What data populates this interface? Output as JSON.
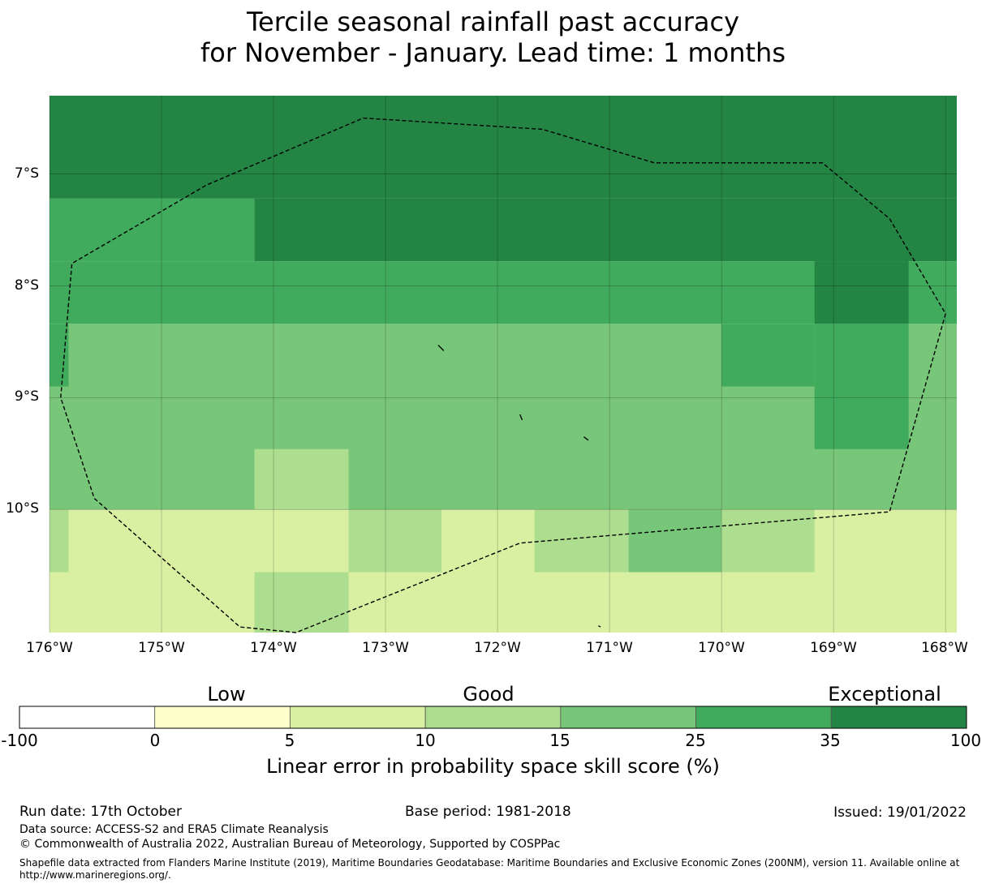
{
  "title": {
    "line1": "Tercile seasonal rainfall past accuracy",
    "line2": "for November - January. Lead time: 1 months"
  },
  "map": {
    "lat_ticks": [
      "7°S",
      "8°S",
      "9°S",
      "10°S"
    ],
    "lon_ticks": [
      "176°W",
      "175°W",
      "174°W",
      "173°W",
      "172°W",
      "171°W",
      "170°W",
      "169°W",
      "168°W"
    ],
    "extent": {
      "lon_min": -176.0,
      "lon_max": -167.9,
      "lat_north": -6.3,
      "lat_south": -11.1
    },
    "grid_cell_deg": 0.833,
    "border_style": "dashed",
    "eez_boundary": [
      [
        -173.2,
        -6.5
      ],
      [
        -171.6,
        -6.6
      ],
      [
        -170.6,
        -6.9
      ],
      [
        -169.1,
        -6.9
      ],
      [
        -168.5,
        -7.4
      ],
      [
        -168.0,
        -8.25
      ],
      [
        -168.5,
        -10.02
      ],
      [
        -171.8,
        -10.3
      ],
      [
        -173.8,
        -11.1
      ],
      [
        -174.3,
        -11.05
      ],
      [
        -175.6,
        -9.9
      ],
      [
        -175.9,
        -9.0
      ],
      [
        -175.8,
        -7.8
      ],
      [
        -174.6,
        -7.1
      ],
      [
        -173.2,
        -6.5
      ]
    ],
    "islands": [
      [
        [
          -172.53,
          -8.53
        ],
        [
          -172.48,
          -8.58
        ]
      ],
      [
        [
          -171.8,
          -9.15
        ],
        [
          -171.78,
          -9.2
        ]
      ],
      [
        [
          -171.23,
          -9.35
        ],
        [
          -171.19,
          -9.38
        ]
      ],
      [
        [
          -171.1,
          -11.04
        ],
        [
          -171.08,
          -11.05
        ]
      ]
    ],
    "cells": [
      {
        "x0": -176.0,
        "x1": -167.9,
        "y0": -6.3,
        "y1": -7.22,
        "color": "#238443"
      },
      {
        "x0": -176.0,
        "x1": -174.17,
        "y0": -7.22,
        "y1": -7.78,
        "color": "#41ab5d"
      },
      {
        "x0": -174.17,
        "x1": -167.9,
        "y0": -7.22,
        "y1": -7.78,
        "color": "#238443"
      },
      {
        "x0": -176.0,
        "x1": -167.9,
        "y0": -7.78,
        "y1": -8.34,
        "color": "#41ab5d"
      },
      {
        "x0": -169.17,
        "x1": -168.33,
        "y0": -7.78,
        "y1": -8.34,
        "color": "#238443"
      },
      {
        "x0": -176.0,
        "x1": -167.9,
        "y0": -8.34,
        "y1": -10.0,
        "color": "#78c679"
      },
      {
        "x0": -176.0,
        "x1": -175.83,
        "y0": -8.34,
        "y1": -8.9,
        "color": "#41ab5d"
      },
      {
        "x0": -170.0,
        "x1": -169.17,
        "y0": -8.34,
        "y1": -8.9,
        "color": "#41ab5d"
      },
      {
        "x0": -169.17,
        "x1": -168.33,
        "y0": -8.34,
        "y1": -9.46,
        "color": "#41ab5d"
      },
      {
        "x0": -174.17,
        "x1": -173.33,
        "y0": -9.46,
        "y1": -10.0,
        "color": "#addd8e"
      },
      {
        "x0": -176.0,
        "x1": -167.9,
        "y0": -10.0,
        "y1": -11.1,
        "color": "#d9f0a3"
      },
      {
        "x0": -176.0,
        "x1": -175.83,
        "y0": -10.0,
        "y1": -10.56,
        "color": "#addd8e"
      },
      {
        "x0": -173.33,
        "x1": -172.5,
        "y0": -10.0,
        "y1": -10.56,
        "color": "#addd8e"
      },
      {
        "x0": -171.67,
        "x1": -170.83,
        "y0": -10.0,
        "y1": -10.56,
        "color": "#addd8e"
      },
      {
        "x0": -170.83,
        "x1": -170.0,
        "y0": -10.0,
        "y1": -10.56,
        "color": "#78c679"
      },
      {
        "x0": -170.0,
        "x1": -169.17,
        "y0": -10.0,
        "y1": -10.56,
        "color": "#addd8e"
      },
      {
        "x0": -174.17,
        "x1": -173.33,
        "y0": -10.56,
        "y1": -11.1,
        "color": "#addd8e"
      }
    ]
  },
  "colorbar": {
    "ticks": [
      "-100",
      "0",
      "5",
      "10",
      "15",
      "25",
      "35",
      "100"
    ],
    "colors": [
      "#ffffff",
      "#ffffcc",
      "#d9f0a3",
      "#addd8e",
      "#78c679",
      "#41ab5d",
      "#238443"
    ],
    "categories": {
      "low": "Low",
      "good": "Good",
      "exceptional": "Exceptional"
    },
    "label": "Linear error in probability space skill score (%)"
  },
  "footer": {
    "run_date": "Run date: 17th October",
    "base_period": "Base period: 1981-2018",
    "issued": "Issued: 19/01/2022",
    "data_source": "Data source: ACCESS-S2 and ERA5 Climate Reanalysis",
    "copyright": "© Commonwealth of Australia 2022, Australian Bureau of Meteorology, Supported by COSPPac",
    "shapefile": "Shapefile data extracted from Flanders Marine Institute (2019), Maritime Boundaries Geodatabase: Maritime Boundaries and Exclusive Economic Zones (200NM), version 11. Available online at http://www.marineregions.org/."
  }
}
